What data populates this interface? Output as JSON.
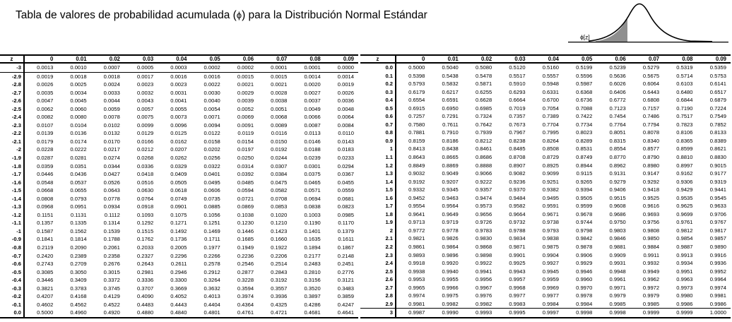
{
  "title": {
    "pre": "Tabla de valores de probabilidad acumulada (",
    "phi": "ϕ",
    "post": ") para la Distribución Normal Estándar"
  },
  "graphic": {
    "label": "ϕ[z]"
  },
  "colors": {
    "ink": "#000000",
    "shade": "#8f8f8f",
    "background": "#ffffff"
  },
  "columns": [
    "z",
    "0",
    "0.01",
    "0.02",
    "0.03",
    "0.04",
    "0.05",
    "0.06",
    "0.07",
    "0.08",
    "0.09"
  ],
  "left_table": {
    "rows": [
      {
        "z": "-3",
        "divider": "below",
        "values": [
          "0.0013",
          "0.0010",
          "0.0007",
          "0.0005",
          "0.0003",
          "0.0002",
          "0.0002",
          "0.0001",
          "0.0001",
          "0.0000"
        ]
      },
      {
        "z": "-2.9",
        "values": [
          "0.0019",
          "0.0018",
          "0.0018",
          "0.0017",
          "0.0016",
          "0.0016",
          "0.0015",
          "0.0015",
          "0.0014",
          "0.0014"
        ]
      },
      {
        "z": "-2.8",
        "values": [
          "0.0026",
          "0.0025",
          "0.0024",
          "0.0023",
          "0.0023",
          "0.0022",
          "0.0021",
          "0.0021",
          "0.0020",
          "0.0019"
        ]
      },
      {
        "z": "-2.7",
        "values": [
          "0.0035",
          "0.0034",
          "0.0033",
          "0.0032",
          "0.0031",
          "0.0030",
          "0.0029",
          "0.0028",
          "0.0027",
          "0.0026"
        ]
      },
      {
        "z": "-2.6",
        "values": [
          "0.0047",
          "0.0045",
          "0.0044",
          "0.0043",
          "0.0041",
          "0.0040",
          "0.0039",
          "0.0038",
          "0.0037",
          "0.0036"
        ]
      },
      {
        "z": "-2.5",
        "values": [
          "0.0062",
          "0.0060",
          "0.0059",
          "0.0057",
          "0.0055",
          "0.0054",
          "0.0052",
          "0.0051",
          "0.0049",
          "0.0048"
        ]
      },
      {
        "z": "-2.4",
        "values": [
          "0.0082",
          "0.0080",
          "0.0078",
          "0.0075",
          "0.0073",
          "0.0071",
          "0.0069",
          "0.0068",
          "0.0066",
          "0.0064"
        ]
      },
      {
        "z": "-2.3",
        "values": [
          "0.0107",
          "0.0104",
          "0.0102",
          "0.0099",
          "0.0096",
          "0.0094",
          "0.0091",
          "0.0089",
          "0.0087",
          "0.0084"
        ]
      },
      {
        "z": "-2.2",
        "values": [
          "0.0139",
          "0.0136",
          "0.0132",
          "0.0129",
          "0.0125",
          "0.0122",
          "0.0119",
          "0.0116",
          "0.0113",
          "0.0110"
        ]
      },
      {
        "z": "-2.1",
        "values": [
          "0.0179",
          "0.0174",
          "0.0170",
          "0.0166",
          "0.0162",
          "0.0158",
          "0.0154",
          "0.0150",
          "0.0146",
          "0.0143"
        ]
      },
      {
        "z": "-2",
        "values": [
          "0.0228",
          "0.0222",
          "0.0217",
          "0.0212",
          "0.0207",
          "0.0202",
          "0.0197",
          "0.0192",
          "0.0188",
          "0.0183"
        ]
      },
      {
        "z": "-1.9",
        "values": [
          "0.0287",
          "0.0281",
          "0.0274",
          "0.0268",
          "0.0262",
          "0.0256",
          "0.0250",
          "0.0244",
          "0.0239",
          "0.0233"
        ]
      },
      {
        "z": "-1.8",
        "values": [
          "0.0359",
          "0.0351",
          "0.0344",
          "0.0336",
          "0.0329",
          "0.0322",
          "0.0314",
          "0.0307",
          "0.0301",
          "0.0294"
        ]
      },
      {
        "z": "-1.7",
        "values": [
          "0.0446",
          "0.0436",
          "0.0427",
          "0.0418",
          "0.0409",
          "0.0401",
          "0.0392",
          "0.0384",
          "0.0375",
          "0.0367"
        ]
      },
      {
        "z": "-1.6",
        "values": [
          "0.0548",
          "0.0537",
          "0.0526",
          "0.0516",
          "0.0505",
          "0.0495",
          "0.0485",
          "0.0475",
          "0.0465",
          "0.0455"
        ]
      },
      {
        "z": "-1.5",
        "values": [
          "0.0668",
          "0.0655",
          "0.0643",
          "0.0630",
          "0.0618",
          "0.0606",
          "0.0594",
          "0.0582",
          "0.0571",
          "0.0559"
        ]
      },
      {
        "z": "-1.4",
        "values": [
          "0.0808",
          "0.0793",
          "0.0778",
          "0.0764",
          "0.0749",
          "0.0735",
          "0.0721",
          "0.0708",
          "0.0694",
          "0.0681"
        ]
      },
      {
        "z": "-1.3",
        "values": [
          "0.0968",
          "0.0951",
          "0.0934",
          "0.0918",
          "0.0901",
          "0.0885",
          "0.0869",
          "0.0853",
          "0.0838",
          "0.0823"
        ]
      },
      {
        "z": "-1.2",
        "values": [
          "0.1151",
          "0.1131",
          "0.1112",
          "0.1093",
          "0.1075",
          "0.1056",
          "0.1038",
          "0.1020",
          "0.1003",
          "0.0985"
        ]
      },
      {
        "z": "-1.1",
        "values": [
          "0.1357",
          "0.1335",
          "0.1314",
          "0.1292",
          "0.1271",
          "0.1251",
          "0.1230",
          "0.1210",
          "0.1190",
          "0.1170"
        ]
      },
      {
        "z": "-1",
        "values": [
          "0.1587",
          "0.1562",
          "0.1539",
          "0.1515",
          "0.1492",
          "0.1469",
          "0.1446",
          "0.1423",
          "0.1401",
          "0.1379"
        ]
      },
      {
        "z": "-0.9",
        "values": [
          "0.1841",
          "0.1814",
          "0.1788",
          "0.1762",
          "0.1736",
          "0.1711",
          "0.1685",
          "0.1660",
          "0.1635",
          "0.1611"
        ]
      },
      {
        "z": "-0.8",
        "values": [
          "0.2119",
          "0.2090",
          "0.2061",
          "0.2033",
          "0.2005",
          "0.1977",
          "0.1949",
          "0.1922",
          "0.1894",
          "0.1867"
        ]
      },
      {
        "z": "-0.7",
        "values": [
          "0.2420",
          "0.2389",
          "0.2358",
          "0.2327",
          "0.2296",
          "0.2266",
          "0.2236",
          "0.2206",
          "0.2177",
          "0.2148"
        ]
      },
      {
        "z": "-0.6",
        "values": [
          "0.2743",
          "0.2709",
          "0.2676",
          "0.2643",
          "0.2611",
          "0.2578",
          "0.2546",
          "0.2514",
          "0.2483",
          "0.2451"
        ]
      },
      {
        "z": "-0.5",
        "values": [
          "0.3085",
          "0.3050",
          "0.3015",
          "0.2981",
          "0.2946",
          "0.2912",
          "0.2877",
          "0.2843",
          "0.2810",
          "0.2776"
        ]
      },
      {
        "z": "-0.4",
        "values": [
          "0.3446",
          "0.3409",
          "0.3372",
          "0.3336",
          "0.3300",
          "0.3264",
          "0.3228",
          "0.3192",
          "0.3156",
          "0.3121"
        ]
      },
      {
        "z": "-0.3",
        "values": [
          "0.3821",
          "0.3783",
          "0.3745",
          "0.3707",
          "0.3669",
          "0.3632",
          "0.3594",
          "0.3557",
          "0.3520",
          "0.3483"
        ]
      },
      {
        "z": "-0.2",
        "values": [
          "0.4207",
          "0.4168",
          "0.4129",
          "0.4090",
          "0.4052",
          "0.4013",
          "0.3974",
          "0.3936",
          "0.3897",
          "0.3859"
        ]
      },
      {
        "z": "-0.1",
        "values": [
          "0.4602",
          "0.4562",
          "0.4522",
          "0.4483",
          "0.4443",
          "0.4404",
          "0.4364",
          "0.4325",
          "0.4286",
          "0.4247"
        ]
      },
      {
        "z": "0.0",
        "values": [
          "0.5000",
          "0.4960",
          "0.4920",
          "0.4880",
          "0.4840",
          "0.4801",
          "0.4761",
          "0.4721",
          "0.4681",
          "0.4641"
        ]
      }
    ]
  },
  "right_table": {
    "rows": [
      {
        "z": "0.0",
        "values": [
          "0.5000",
          "0.5040",
          "0.5080",
          "0.5120",
          "0.5160",
          "0.5199",
          "0.5239",
          "0.5279",
          "0.5319",
          "0.5359"
        ]
      },
      {
        "z": "0.1",
        "values": [
          "0.5398",
          "0.5438",
          "0.5478",
          "0.5517",
          "0.5557",
          "0.5596",
          "0.5636",
          "0.5675",
          "0.5714",
          "0.5753"
        ]
      },
      {
        "z": "0.2",
        "values": [
          "0.5793",
          "0.5832",
          "0.5871",
          "0.5910",
          "0.5948",
          "0.5987",
          "0.6026",
          "0.6064",
          "0.6103",
          "0.6141"
        ]
      },
      {
        "z": "0.3",
        "values": [
          "0.6179",
          "0.6217",
          "0.6255",
          "0.6293",
          "0.6331",
          "0.6368",
          "0.6406",
          "0.6443",
          "0.6480",
          "0.6517"
        ]
      },
      {
        "z": "0.4",
        "values": [
          "0.6554",
          "0.6591",
          "0.6628",
          "0.6664",
          "0.6700",
          "0.6736",
          "0.6772",
          "0.6808",
          "0.6844",
          "0.6879"
        ]
      },
      {
        "z": "0.5",
        "values": [
          "0.6915",
          "0.6950",
          "0.6985",
          "0.7019",
          "0.7054",
          "0.7088",
          "0.7123",
          "0.7157",
          "0.7190",
          "0.7224"
        ]
      },
      {
        "z": "0.6",
        "values": [
          "0.7257",
          "0.7291",
          "0.7324",
          "0.7357",
          "0.7389",
          "0.7422",
          "0.7454",
          "0.7486",
          "0.7517",
          "0.7549"
        ]
      },
      {
        "z": "0.7",
        "values": [
          "0.7580",
          "0.7611",
          "0.7642",
          "0.7673",
          "0.7704",
          "0.7734",
          "0.7764",
          "0.7794",
          "0.7823",
          "0.7852"
        ]
      },
      {
        "z": "0.8",
        "values": [
          "0.7881",
          "0.7910",
          "0.7939",
          "0.7967",
          "0.7995",
          "0.8023",
          "0.8051",
          "0.8078",
          "0.8106",
          "0.8133"
        ]
      },
      {
        "z": "0.9",
        "values": [
          "0.8159",
          "0.8186",
          "0.8212",
          "0.8238",
          "0.8264",
          "0.8289",
          "0.8315",
          "0.8340",
          "0.8365",
          "0.8389"
        ]
      },
      {
        "z": "1",
        "values": [
          "0.8413",
          "0.8438",
          "0.8461",
          "0.8485",
          "0.8508",
          "0.8531",
          "0.8554",
          "0.8577",
          "0.8599",
          "0.8621"
        ]
      },
      {
        "z": "1.1",
        "values": [
          "0.8643",
          "0.8665",
          "0.8686",
          "0.8708",
          "0.8729",
          "0.8749",
          "0.8770",
          "0.8790",
          "0.8810",
          "0.8830"
        ]
      },
      {
        "z": "1.2",
        "values": [
          "0.8849",
          "0.8869",
          "0.8888",
          "0.8907",
          "0.8925",
          "0.8944",
          "0.8962",
          "0.8980",
          "0.8997",
          "0.9015"
        ]
      },
      {
        "z": "1.3",
        "values": [
          "0.9032",
          "0.9049",
          "0.9066",
          "0.9082",
          "0.9099",
          "0.9115",
          "0.9131",
          "0.9147",
          "0.9162",
          "0.9177"
        ]
      },
      {
        "z": "1.4",
        "values": [
          "0.9192",
          "0.9207",
          "0.9222",
          "0.9236",
          "0.9251",
          "0.9265",
          "0.9279",
          "0.9292",
          "0.9306",
          "0.9319"
        ]
      },
      {
        "z": "1.5",
        "values": [
          "0.9332",
          "0.9345",
          "0.9357",
          "0.9370",
          "0.9382",
          "0.9394",
          "0.9406",
          "0.9418",
          "0.9429",
          "0.9441"
        ]
      },
      {
        "z": "1.6",
        "values": [
          "0.9452",
          "0.9463",
          "0.9474",
          "0.9484",
          "0.9495",
          "0.9505",
          "0.9515",
          "0.9525",
          "0.9535",
          "0.9545"
        ]
      },
      {
        "z": "1.7",
        "values": [
          "0.9554",
          "0.9564",
          "0.9573",
          "0.9582",
          "0.9591",
          "0.9599",
          "0.9608",
          "0.9616",
          "0.9625",
          "0.9633"
        ]
      },
      {
        "z": "1.8",
        "values": [
          "0.9641",
          "0.9649",
          "0.9656",
          "0.9664",
          "0.9671",
          "0.9678",
          "0.9686",
          "0.9693",
          "0.9699",
          "0.9706"
        ]
      },
      {
        "z": "1.9",
        "values": [
          "0.9713",
          "0.9719",
          "0.9726",
          "0.9732",
          "0.9738",
          "0.9744",
          "0.9750",
          "0.9756",
          "0.9761",
          "0.9767"
        ]
      },
      {
        "z": "2",
        "values": [
          "0.9772",
          "0.9778",
          "0.9783",
          "0.9788",
          "0.9793",
          "0.9798",
          "0.9803",
          "0.9808",
          "0.9812",
          "0.9817"
        ]
      },
      {
        "z": "2.1",
        "values": [
          "0.9821",
          "0.9826",
          "0.9830",
          "0.9834",
          "0.9838",
          "0.9842",
          "0.9846",
          "0.9850",
          "0.9854",
          "0.9857"
        ]
      },
      {
        "z": "2.2",
        "values": [
          "0.9861",
          "0.9864",
          "0.9868",
          "0.9871",
          "0.9875",
          "0.9878",
          "0.9881",
          "0.9884",
          "0.9887",
          "0.9890"
        ]
      },
      {
        "z": "2.3",
        "values": [
          "0.9893",
          "0.9896",
          "0.9898",
          "0.9901",
          "0.9904",
          "0.9906",
          "0.9909",
          "0.9911",
          "0.9913",
          "0.9916"
        ]
      },
      {
        "z": "2.4",
        "values": [
          "0.9918",
          "0.9920",
          "0.9922",
          "0.9925",
          "0.9927",
          "0.9929",
          "0.9931",
          "0.9932",
          "0.9934",
          "0.9936"
        ]
      },
      {
        "z": "2.5",
        "values": [
          "0.9938",
          "0.9940",
          "0.9941",
          "0.9943",
          "0.9945",
          "0.9946",
          "0.9948",
          "0.9949",
          "0.9951",
          "0.9952"
        ]
      },
      {
        "z": "2.6",
        "values": [
          "0.9953",
          "0.9955",
          "0.9956",
          "0.9957",
          "0.9959",
          "0.9960",
          "0.9961",
          "0.9962",
          "0.9963",
          "0.9964"
        ]
      },
      {
        "z": "2.7",
        "values": [
          "0.9965",
          "0.9966",
          "0.9967",
          "0.9968",
          "0.9969",
          "0.9970",
          "0.9971",
          "0.9972",
          "0.9973",
          "0.9974"
        ]
      },
      {
        "z": "2.8",
        "values": [
          "0.9974",
          "0.9975",
          "0.9976",
          "0.9977",
          "0.9977",
          "0.9978",
          "0.9979",
          "0.9979",
          "0.9980",
          "0.9981"
        ]
      },
      {
        "z": "2.9",
        "values": [
          "0.9981",
          "0.9982",
          "0.9982",
          "0.9983",
          "0.9984",
          "0.9984",
          "0.9985",
          "0.9985",
          "0.9986",
          "0.9986"
        ]
      },
      {
        "z": "3",
        "divider": "above",
        "values": [
          "0.9987",
          "0.9990",
          "0.9993",
          "0.9995",
          "0.9997",
          "0.9998",
          "0.9998",
          "0.9999",
          "0.9999",
          "1.0000"
        ]
      }
    ]
  }
}
